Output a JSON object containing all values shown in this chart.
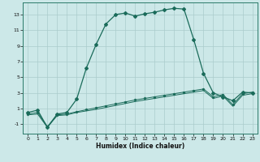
{
  "title": "",
  "xlabel": "Humidex (Indice chaleur)",
  "xlim": [
    -0.5,
    23.5
  ],
  "ylim": [
    -2.2,
    14.5
  ],
  "yticks": [
    -1,
    1,
    3,
    5,
    7,
    9,
    11,
    13
  ],
  "xticks": [
    0,
    1,
    2,
    3,
    4,
    5,
    6,
    7,
    8,
    9,
    10,
    11,
    12,
    13,
    14,
    15,
    16,
    17,
    18,
    19,
    20,
    21,
    22,
    23
  ],
  "bg_color": "#cce8e8",
  "grid_color": "#aacccc",
  "line_color": "#1a6b5a",
  "line1_x": [
    0,
    1,
    2,
    3,
    4,
    5,
    6,
    7,
    8,
    9,
    10,
    11,
    12,
    13,
    14,
    15,
    16,
    17,
    18,
    19,
    20,
    21,
    22,
    23
  ],
  "line1_y": [
    0.5,
    0.8,
    -1.4,
    0.3,
    0.5,
    2.2,
    6.2,
    9.2,
    11.8,
    13.0,
    13.2,
    12.8,
    13.1,
    13.3,
    13.6,
    13.8,
    13.7,
    9.8,
    5.5,
    3.0,
    2.5,
    2.0,
    3.1,
    3.0
  ],
  "line2_x": [
    0,
    1,
    2,
    3,
    4,
    5,
    6,
    7,
    8,
    9,
    10,
    11,
    12,
    13,
    14,
    15,
    16,
    17,
    18,
    19,
    20,
    21,
    22,
    23
  ],
  "line2_y": [
    0.3,
    0.5,
    -1.3,
    0.2,
    0.3,
    0.6,
    0.85,
    1.1,
    1.35,
    1.6,
    1.85,
    2.1,
    2.3,
    2.5,
    2.7,
    2.9,
    3.1,
    3.3,
    3.5,
    2.5,
    2.8,
    1.5,
    2.9,
    3.1
  ],
  "line3_x": [
    0,
    1,
    2,
    3,
    4,
    5,
    6,
    7,
    8,
    9,
    10,
    11,
    12,
    13,
    14,
    15,
    16,
    17,
    18,
    19,
    20,
    21,
    22,
    23
  ],
  "line3_y": [
    0.2,
    0.3,
    -1.4,
    0.1,
    0.2,
    0.5,
    0.7,
    0.9,
    1.15,
    1.4,
    1.65,
    1.9,
    2.1,
    2.3,
    2.5,
    2.7,
    2.9,
    3.1,
    3.3,
    2.3,
    2.6,
    1.3,
    2.7,
    2.9
  ]
}
